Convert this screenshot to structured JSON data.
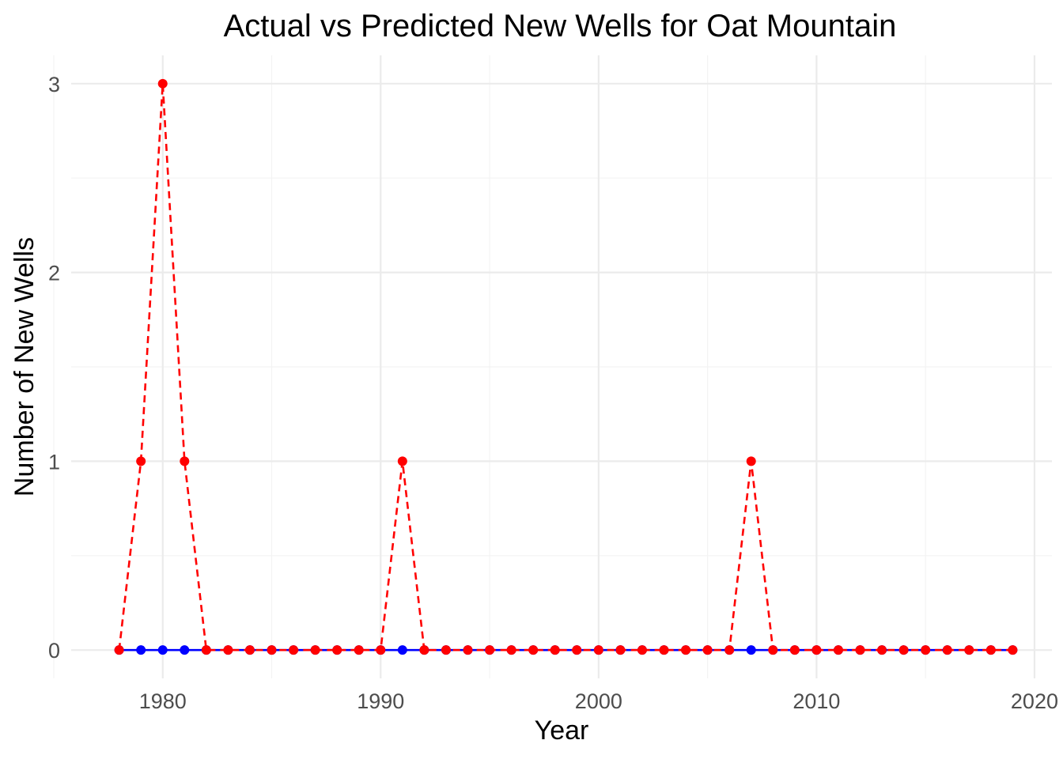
{
  "chart_data": {
    "type": "line",
    "title": "Actual vs Predicted New Wells for Oat Mountain",
    "xlabel": "Year",
    "ylabel": "Number of New Wells",
    "x": [
      1978,
      1979,
      1980,
      1981,
      1982,
      1983,
      1984,
      1985,
      1986,
      1987,
      1988,
      1989,
      1990,
      1991,
      1992,
      1993,
      1994,
      1995,
      1996,
      1997,
      1998,
      1999,
      2000,
      2001,
      2002,
      2003,
      2004,
      2005,
      2006,
      2007,
      2008,
      2009,
      2010,
      2011,
      2012,
      2013,
      2014,
      2015,
      2016,
      2017,
      2018,
      2019
    ],
    "xlim": [
      1975.8,
      2020.8
    ],
    "ylim": [
      -0.15,
      3.15
    ],
    "xticks": [
      1980,
      1990,
      2000,
      2010,
      2020
    ],
    "xtick_labels": [
      "1980",
      "1990",
      "2000",
      "2010",
      "2020"
    ],
    "yticks": [
      0,
      1,
      2,
      3
    ],
    "ytick_labels": [
      "0",
      "1",
      "2",
      "3"
    ],
    "grid": true,
    "legend": "none",
    "series": [
      {
        "color": "#0000ff",
        "line_style": "solid",
        "values": [
          0,
          0,
          0,
          0,
          0,
          0,
          0,
          0,
          0,
          0,
          0,
          0,
          0,
          0,
          0,
          0,
          0,
          0,
          0,
          0,
          0,
          0,
          0,
          0,
          0,
          0,
          0,
          0,
          0,
          0,
          0,
          0,
          0,
          0,
          0,
          0,
          0,
          0,
          0,
          0,
          0,
          0
        ]
      },
      {
        "color": "#ff0000",
        "line_style": "dashed",
        "values": [
          0,
          1,
          3,
          1,
          0,
          0,
          0,
          0,
          0,
          0,
          0,
          0,
          0,
          1,
          0,
          0,
          0,
          0,
          0,
          0,
          0,
          0,
          0,
          0,
          0,
          0,
          0,
          0,
          0,
          1,
          0,
          0,
          0,
          0,
          0,
          0,
          0,
          0,
          0,
          0,
          0,
          0
        ]
      }
    ]
  }
}
